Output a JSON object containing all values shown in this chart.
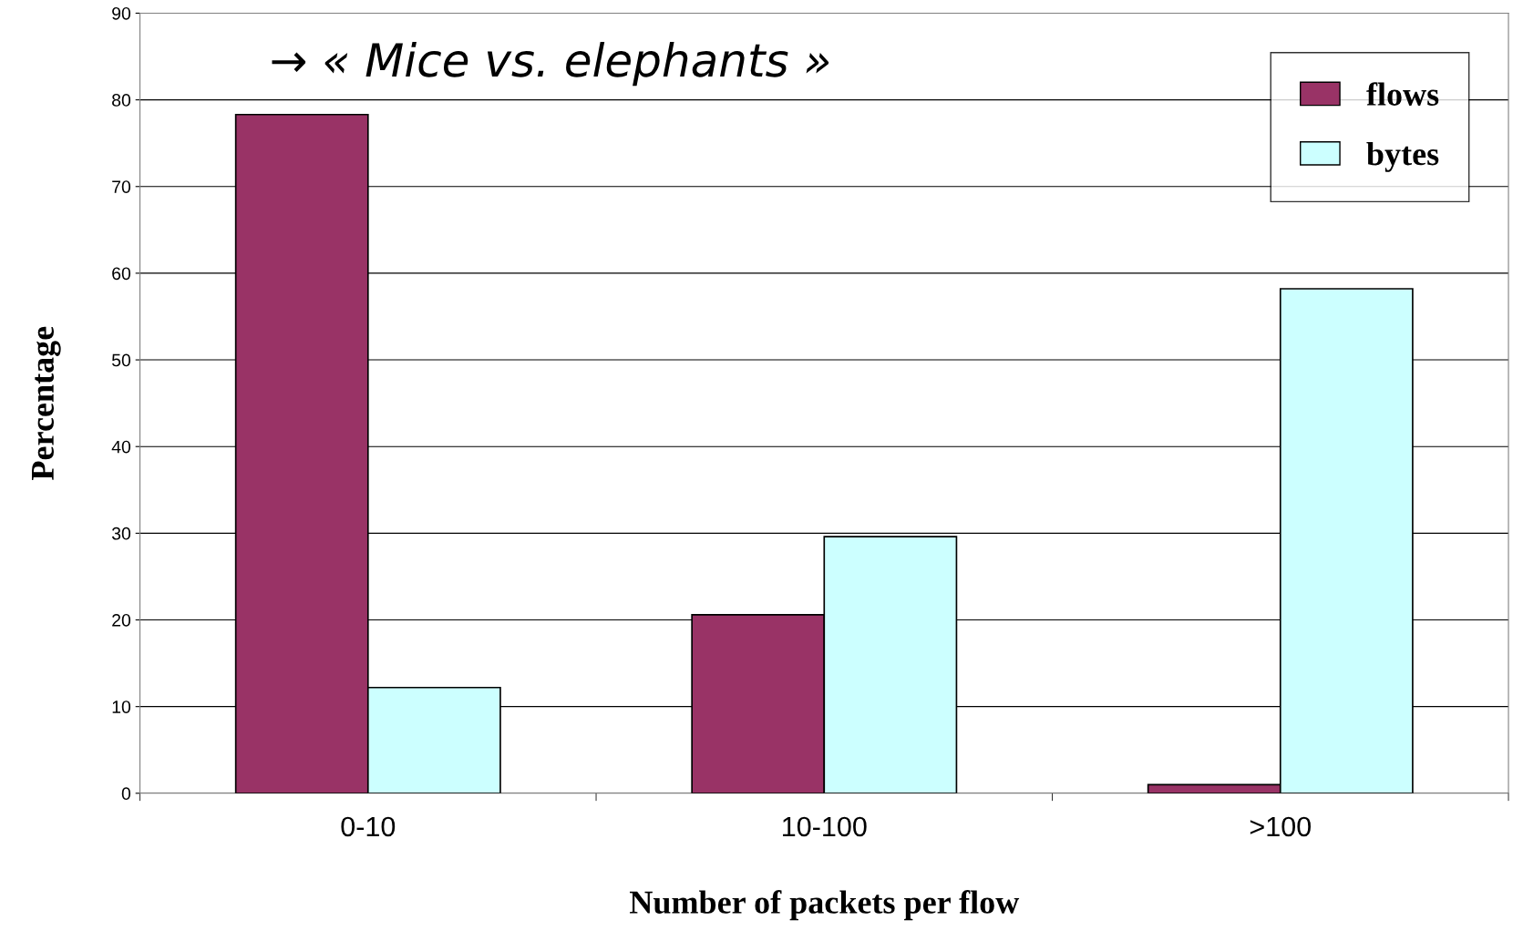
{
  "chart_data": {
    "type": "bar",
    "xlabel": "Number of packets per flow",
    "ylabel": "Percentage",
    "categories": [
      "0-10",
      "10-100",
      ">100"
    ],
    "series": [
      {
        "name": "flows",
        "color": "#993366",
        "values": [
          78.3,
          20.6,
          1.0
        ]
      },
      {
        "name": "bytes",
        "color": "#ccffff",
        "values": [
          12.2,
          29.6,
          58.2
        ]
      }
    ],
    "ylim": [
      0,
      90
    ],
    "yticks": [
      0,
      10,
      20,
      30,
      40,
      50,
      60,
      70,
      80,
      90
    ],
    "grid": "y",
    "legend": "top right",
    "annotations": [
      "→ « Mice vs. elephants »"
    ]
  }
}
